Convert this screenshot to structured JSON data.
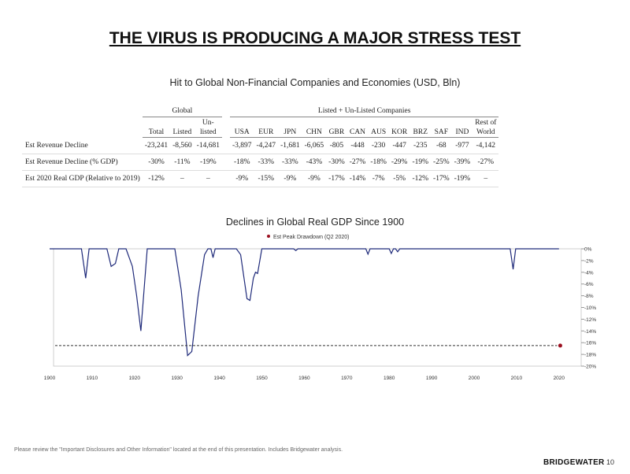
{
  "title": "THE VIRUS IS PRODUCING A MAJOR STRESS TEST",
  "table": {
    "title": "Hit to Global Non-Financial Companies and Economies (USD, Bln)",
    "group_global": "Global",
    "group_listed": "Listed + Un-Listed Companies",
    "headers_top": [
      "",
      "",
      "",
      "Un-",
      "",
      "",
      "",
      "",
      "",
      "",
      "",
      "",
      "",
      "",
      "",
      "Rest of"
    ],
    "headers": [
      "",
      "Total",
      "Listed",
      "listed",
      "USA",
      "EUR",
      "JPN",
      "CHN",
      "GBR",
      "CAN",
      "AUS",
      "KOR",
      "BRZ",
      "SAF",
      "IND",
      "World"
    ],
    "rows": [
      [
        "Est Revenue Decline",
        "-23,241",
        "-8,560",
        "-14,681",
        "-3,897",
        "-4,247",
        "-1,681",
        "-6,065",
        "-805",
        "-448",
        "-230",
        "-447",
        "-235",
        "-68",
        "-977",
        "-4,142"
      ],
      [
        "Est Revenue Decline (% GDP)",
        "-30%",
        "-11%",
        "-19%",
        "-18%",
        "-33%",
        "-33%",
        "-43%",
        "-30%",
        "-27%",
        "-18%",
        "-29%",
        "-19%",
        "-25%",
        "-39%",
        "-27%"
      ],
      [
        "Est 2020 Real GDP (Relative to 2019)",
        "-12%",
        "–",
        "–",
        "-9%",
        "-15%",
        "-9%",
        "-9%",
        "-17%",
        "-14%",
        "-7%",
        "-5%",
        "-12%",
        "-17%",
        "-19%",
        "–"
      ]
    ]
  },
  "chart_data": {
    "type": "line",
    "title": "Declines in Global Real GDP Since 1900",
    "legend": [
      "Est Peak Drawdown (Q2 2020)"
    ],
    "legend_placement": "top",
    "xlim": [
      1900,
      2025
    ],
    "ylim": [
      -20,
      0
    ],
    "x_ticks": [
      "1900",
      "1910",
      "1920",
      "1930",
      "1940",
      "1950",
      "1960",
      "1970",
      "1980",
      "1990",
      "2000",
      "2010",
      "2020"
    ],
    "y_ticks": [
      "0%",
      "-2%",
      "-4%",
      "-6%",
      "-8%",
      "-10%",
      "-12%",
      "-14%",
      "-16%",
      "-18%",
      "-20%"
    ],
    "series": [
      {
        "color": "#1f2a7a",
        "x": [
          1900,
          1907.5,
          1908.5,
          1909.3,
          1913.5,
          1914.5,
          1915.5,
          1916.3,
          1918,
          1919.5,
          1920.5,
          1921.5,
          1923,
          1929.5,
          1931,
          1932.5,
          1933.5,
          1935,
          1936.5,
          1937.3,
          1938,
          1938.5,
          1939,
          1944,
          1945,
          1946.5,
          1947.2,
          1948,
          1948.5,
          1949,
          1950,
          1957.5,
          1958,
          1958.5,
          1974.5,
          1975,
          1975.5,
          1980,
          1980.5,
          1981,
          1981.5,
          1982,
          1982.5,
          2008.5,
          2009.2,
          2009.8,
          2020
        ],
        "y": [
          0,
          0,
          -5,
          0,
          0,
          -3,
          -2.5,
          0,
          0,
          -3,
          -8,
          -14,
          0,
          0,
          -7,
          -18.2,
          -17.5,
          -8,
          -1,
          0,
          0,
          -1.5,
          0,
          0,
          -1,
          -8.5,
          -8.8,
          -5,
          -4,
          -4.2,
          0,
          0,
          -0.3,
          0,
          0,
          -0.9,
          0,
          0,
          -0.8,
          0,
          0,
          -0.5,
          0,
          0,
          -3.5,
          0,
          0
        ]
      }
    ],
    "estimate": {
      "label": "Est Peak Drawdown (Q2 2020)",
      "x": 2020.3,
      "y": -16.5,
      "color": "#9b1020"
    }
  },
  "footer": "Please review the \"Important Disclosures and Other Information\" located at the end of this presentation. Includes Bridgewater analysis.",
  "logo": "BRIDGEWATER",
  "page": "10"
}
